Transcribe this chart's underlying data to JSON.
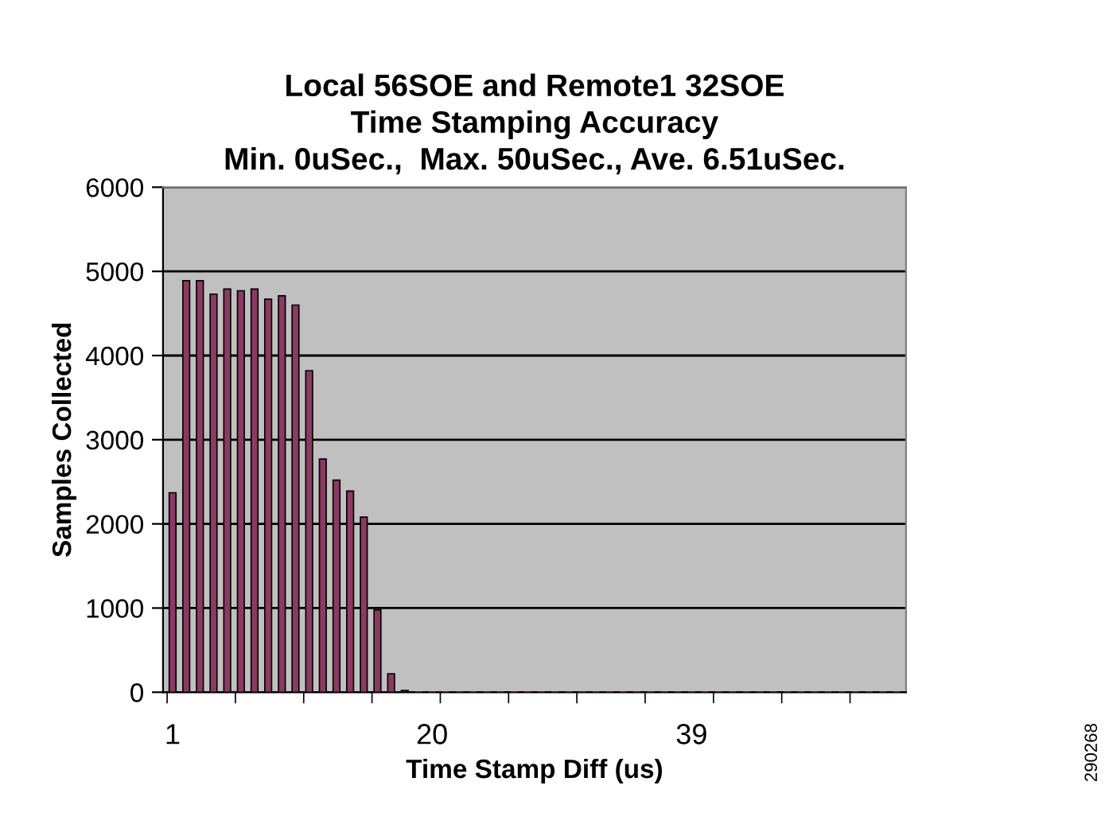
{
  "chart_data": {
    "type": "bar",
    "title": "Local 56SOE and Remote1 32SOE\nTime Stamping Accuracy\nMin. 0uSec.,  Max. 50uSec., Ave. 6.51uSec.",
    "xlabel": "Time Stamp Diff (us)",
    "ylabel": "Samples Collected",
    "categories": [
      "1",
      null,
      null,
      null,
      null,
      null,
      null,
      null,
      null,
      null,
      null,
      null,
      null,
      null,
      null,
      null,
      null,
      null,
      null,
      "20",
      null,
      null,
      null,
      null,
      null,
      null,
      null,
      null,
      null,
      null,
      null,
      null,
      null,
      null,
      null,
      null,
      null,
      null,
      "39",
      null,
      null,
      null,
      null,
      null,
      null,
      null,
      null,
      null,
      null,
      null,
      null,
      null,
      null,
      null
    ],
    "values": [
      2370,
      4890,
      4890,
      4730,
      4790,
      4770,
      4790,
      4670,
      4710,
      4600,
      3820,
      2770,
      2520,
      2390,
      2080,
      980,
      220,
      20,
      0,
      0,
      0,
      0,
      0,
      0,
      0,
      0,
      0,
      0,
      0,
      0,
      0,
      0,
      0,
      0,
      0,
      0,
      0,
      0,
      0,
      0,
      0,
      0,
      0,
      0,
      0,
      0,
      0,
      0,
      0,
      0,
      0,
      0,
      0,
      0
    ],
    "color": "#8b3a62",
    "ylim": [
      0,
      6000
    ],
    "yticks": [
      0,
      1000,
      2000,
      3000,
      4000,
      5000,
      6000
    ],
    "grid": "y",
    "annotations": [
      "290268"
    ]
  }
}
